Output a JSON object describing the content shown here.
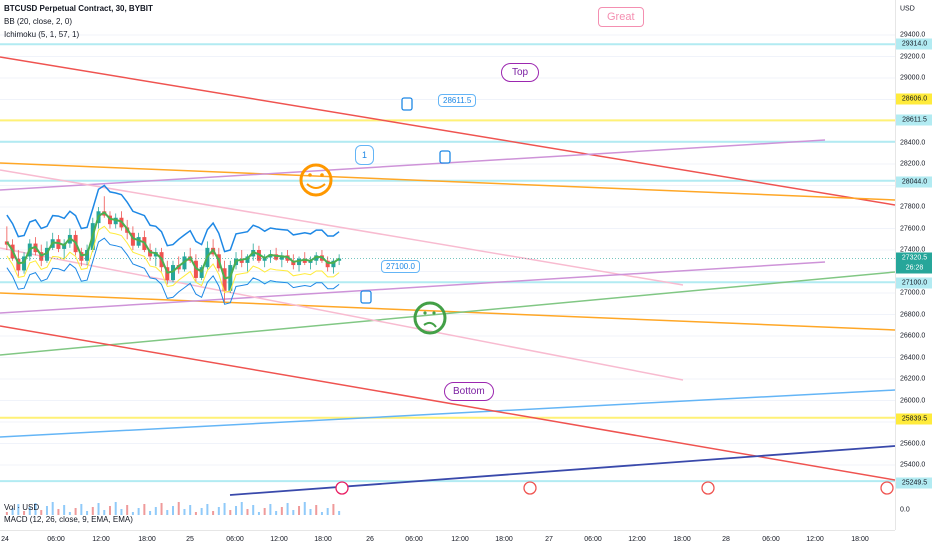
{
  "legend": {
    "symbol": "BTCUSD Perpetual Contract, 30, BYBIT",
    "bb": "BB (20, close, 2, 0)",
    "ichimoku": "Ichimoku (5, 1, 57, 1)",
    "vol": "Vol · USD",
    "macd": "MACD (12, 26, close, 9, EMA, EMA)"
  },
  "price_axis": {
    "currency": "USD",
    "ticks": [
      "29400.0",
      "29200.0",
      "29000.0",
      "28800.0",
      "28400.0",
      "28200.0",
      "27800.0",
      "27600.0",
      "27400.0",
      "27000.0",
      "26800.0",
      "26600.0",
      "26400.0",
      "26200.0",
      "26000.0",
      "25600.0",
      "25400.0",
      "0.0"
    ],
    "labels": [
      {
        "text": "29314.0",
        "color": "#b2ebf2"
      },
      {
        "text": "28606.0",
        "color": "#ffeb3b"
      },
      {
        "text": "28611.5",
        "color": "#b2ebf2"
      },
      {
        "text": "28044.0",
        "color": "#b2ebf2"
      },
      {
        "text": "27320.5",
        "color": "#26a69a"
      },
      {
        "text": "26:28",
        "color": "#26a69a"
      },
      {
        "text": "27100.0",
        "color": "#b2ebf2"
      },
      {
        "text": "25839.5",
        "color": "#ffeb3b"
      },
      {
        "text": "25249.5",
        "color": "#b2ebf2"
      }
    ]
  },
  "time_axis": [
    "24",
    "06:00",
    "12:00",
    "18:00",
    "25",
    "06:00",
    "12:00",
    "18:00",
    "26",
    "06:00",
    "12:00",
    "18:00",
    "27",
    "06:00",
    "12:00",
    "18:00",
    "28",
    "06:00",
    "12:00",
    "18:00"
  ],
  "annotations": {
    "great": "Great",
    "top": "Top",
    "bottom": "Bottom",
    "price1": "28611.5",
    "price2": "27100.0",
    "one": "1"
  },
  "colors": {
    "up": "#26a69a",
    "down": "#ef5350",
    "bb": "#1e88e5",
    "ichimoku": "#ffeb3b"
  },
  "chart_data": {
    "type": "candlestick",
    "symbol": "BTCUSD",
    "interval": "30",
    "exchange": "BYBIT",
    "last_price": 27320.5,
    "countdown": "26:28",
    "horizontal_levels": [
      29314.0,
      28606.0,
      28611.5,
      28044.0,
      27100.0,
      25839.5,
      25249.5
    ],
    "ylim": [
      25250,
      29450
    ],
    "candles": [
      [
        27480,
        27620,
        27400,
        27450
      ],
      [
        27450,
        27500,
        27300,
        27320
      ],
      [
        27320,
        27400,
        27150,
        27210
      ],
      [
        27210,
        27380,
        27180,
        27340
      ],
      [
        27340,
        27500,
        27300,
        27460
      ],
      [
        27460,
        27520,
        27350,
        27380
      ],
      [
        27380,
        27450,
        27250,
        27300
      ],
      [
        27300,
        27480,
        27280,
        27420
      ],
      [
        27420,
        27560,
        27400,
        27500
      ],
      [
        27500,
        27540,
        27380,
        27410
      ],
      [
        27410,
        27500,
        27320,
        27460
      ],
      [
        27460,
        27600,
        27420,
        27540
      ],
      [
        27540,
        27580,
        27350,
        27380
      ],
      [
        27380,
        27420,
        27250,
        27300
      ],
      [
        27300,
        27450,
        27260,
        27400
      ],
      [
        27400,
        27700,
        27380,
        27650
      ],
      [
        27650,
        27800,
        27600,
        27760
      ],
      [
        27760,
        27900,
        27700,
        27720
      ],
      [
        27720,
        27760,
        27600,
        27640
      ],
      [
        27640,
        27740,
        27600,
        27700
      ],
      [
        27700,
        27760,
        27580,
        27610
      ],
      [
        27610,
        27680,
        27500,
        27560
      ],
      [
        27560,
        27620,
        27400,
        27440
      ],
      [
        27440,
        27560,
        27420,
        27520
      ],
      [
        27520,
        27580,
        27380,
        27400
      ],
      [
        27400,
        27460,
        27300,
        27340
      ],
      [
        27340,
        27420,
        27250,
        27380
      ],
      [
        27380,
        27420,
        27200,
        27240
      ],
      [
        27240,
        27300,
        27080,
        27120
      ],
      [
        27120,
        27300,
        27100,
        27260
      ],
      [
        27260,
        27340,
        27180,
        27220
      ],
      [
        27220,
        27380,
        27200,
        27340
      ],
      [
        27340,
        27420,
        27280,
        27300
      ],
      [
        27300,
        27360,
        27100,
        27140
      ],
      [
        27140,
        27260,
        27120,
        27240
      ],
      [
        27240,
        27480,
        27220,
        27420
      ],
      [
        27420,
        27500,
        27340,
        27360
      ],
      [
        27360,
        27420,
        27200,
        27230
      ],
      [
        27230,
        27300,
        26920,
        27020
      ],
      [
        27020,
        27300,
        27000,
        27260
      ],
      [
        27260,
        27380,
        27220,
        27320
      ],
      [
        27320,
        27400,
        27240,
        27280
      ],
      [
        27280,
        27360,
        27200,
        27340
      ],
      [
        27340,
        27460,
        27300,
        27400
      ],
      [
        27400,
        27440,
        27280,
        27300
      ],
      [
        27300,
        27360,
        27240,
        27330
      ],
      [
        27330,
        27400,
        27280,
        27360
      ],
      [
        27360,
        27420,
        27300,
        27310
      ],
      [
        27310,
        27380,
        27240,
        27350
      ],
      [
        27350,
        27400,
        27280,
        27300
      ],
      [
        27300,
        27360,
        27220,
        27260
      ],
      [
        27260,
        27340,
        27200,
        27320
      ],
      [
        27320,
        27380,
        27260,
        27280
      ],
      [
        27280,
        27340,
        27220,
        27300
      ],
      [
        27300,
        27380,
        27260,
        27350
      ],
      [
        27350,
        27400,
        27280,
        27300
      ],
      [
        27300,
        27340,
        27200,
        27240
      ],
      [
        27240,
        27320,
        27180,
        27300
      ],
      [
        27300,
        27360,
        27260,
        27320
      ]
    ]
  }
}
